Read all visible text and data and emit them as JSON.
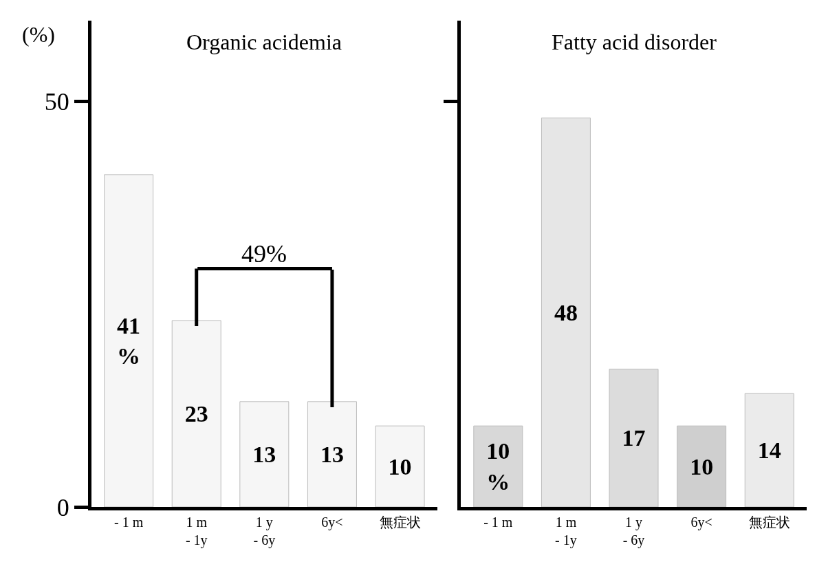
{
  "chart_data": [
    {
      "type": "bar",
      "title": "Organic acidemia",
      "ylabel": "(%)",
      "categories": [
        "- 1 m",
        "1 m\n- 1y",
        "1 y\n- 6y",
        "6y<",
        "無症状"
      ],
      "values": [
        41,
        23,
        13,
        13,
        10
      ],
      "value_labels": [
        "41\n%",
        "23",
        "13",
        "13",
        "10"
      ],
      "colors": [
        "#f6f6f6",
        "#f6f6f6",
        "#f6f6f6",
        "#f6f6f6",
        "#f6f6f6"
      ],
      "ylim": [
        0,
        60
      ],
      "yticks": [
        0,
        50
      ],
      "annotations": [
        "49%"
      ]
    },
    {
      "type": "bar",
      "title": "Fatty acid disorder",
      "categories": [
        "- 1 m",
        "1 m\n- 1y",
        "1 y\n- 6y",
        "6y<",
        "無症状"
      ],
      "values": [
        10,
        48,
        17,
        10,
        14
      ],
      "value_labels": [
        "10\n%",
        "48",
        "17",
        "10",
        "14"
      ],
      "colors": [
        "#d8d8d8",
        "#e6e6e6",
        "#dcdcdc",
        "#cfcfcf",
        "#ebebeb"
      ],
      "ylim": [
        0,
        60
      ],
      "yticks": [
        {
          "value": 50,
          "label": null
        }
      ],
      "tick_labels": "x"
    }
  ]
}
